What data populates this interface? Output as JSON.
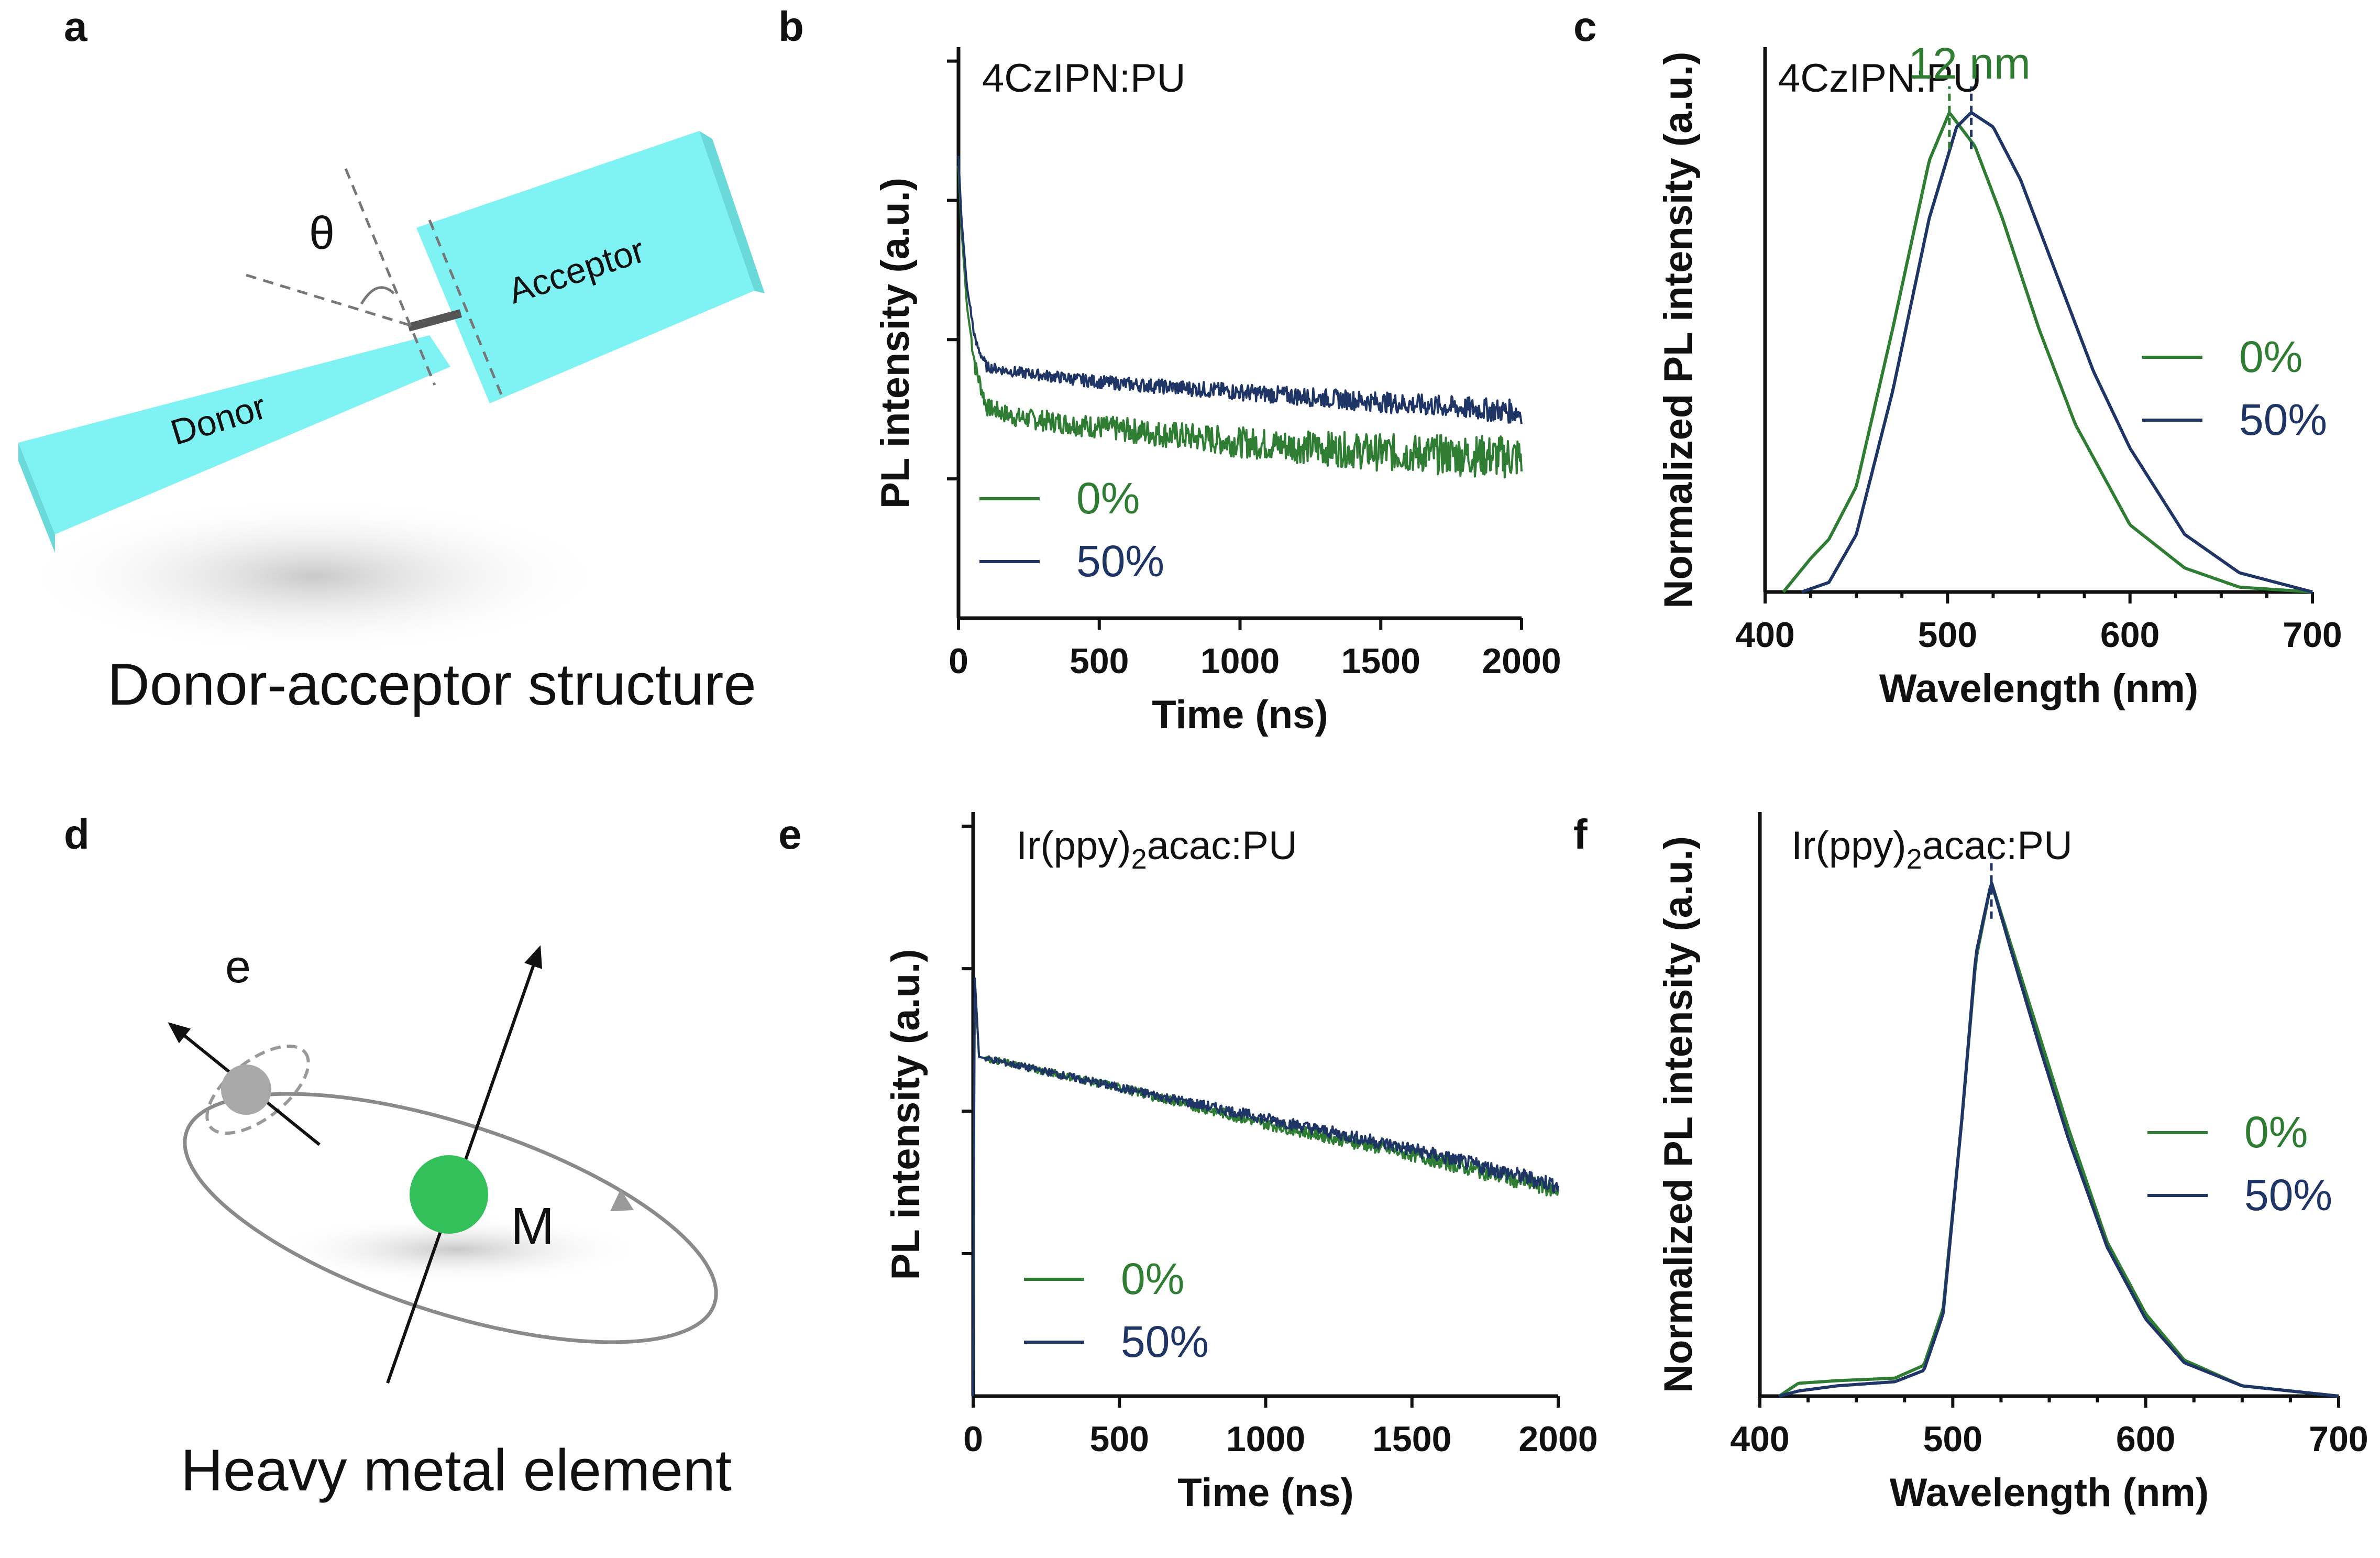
{
  "colors": {
    "green": "#2e7d32",
    "navy": "#1f3566",
    "cyan": "#7df7f7",
    "axis": "#111111"
  },
  "panel_labels": {
    "a": "a",
    "b": "b",
    "c": "c",
    "d": "d",
    "e": "e",
    "f": "f"
  },
  "panel_a": {
    "caption": "Donor-acceptor structure",
    "donor": "Donor",
    "acceptor": "Acceptor",
    "angle": "θ"
  },
  "panel_d": {
    "caption": "Heavy metal element",
    "electron": "e",
    "metal": "M"
  },
  "chart_data": [
    {
      "panel": "b",
      "type": "line",
      "title": "4CzIPN:PU",
      "xlabel": "Time (ns)",
      "ylabel": "PL intensity (a.u.)",
      "xlim": [
        0,
        2000
      ],
      "xticks": [
        "0",
        "500",
        "1000",
        "1500",
        "2000"
      ],
      "y_log_ticks": 4,
      "series": [
        {
          "name": "0%",
          "color": "#2e7d32",
          "x": [
            0,
            10,
            30,
            60,
            100,
            200,
            500,
            1000,
            1500,
            2000
          ],
          "y": [
            0.9,
            0.78,
            0.62,
            0.5,
            0.42,
            0.4,
            0.38,
            0.35,
            0.33,
            0.32
          ]
        },
        {
          "name": "50%",
          "color": "#1f3566",
          "x": [
            0,
            10,
            30,
            60,
            100,
            200,
            500,
            1000,
            1500,
            2000
          ],
          "y": [
            0.92,
            0.8,
            0.66,
            0.55,
            0.5,
            0.49,
            0.47,
            0.45,
            0.43,
            0.41
          ]
        }
      ],
      "legend": [
        "0%",
        "50%"
      ]
    },
    {
      "panel": "c",
      "type": "line",
      "title": "4CzIPN:PU",
      "xlabel": "Wavelength (nm)",
      "ylabel": "Normalized PL intensity (a.u.)",
      "xlim": [
        400,
        700
      ],
      "xticks": [
        "400",
        "500",
        "600",
        "700"
      ],
      "annotation": "12 nm",
      "peaks": [
        501,
        513
      ],
      "series": [
        {
          "name": "0%",
          "color": "#2e7d32",
          "x": [
            410,
            425,
            435,
            450,
            470,
            490,
            501,
            515,
            530,
            550,
            570,
            600,
            630,
            660,
            700
          ],
          "y": [
            0.0,
            0.07,
            0.11,
            0.22,
            0.55,
            0.9,
            1.0,
            0.93,
            0.78,
            0.55,
            0.35,
            0.14,
            0.05,
            0.01,
            0.0
          ]
        },
        {
          "name": "50%",
          "color": "#1f3566",
          "x": [
            420,
            435,
            450,
            470,
            490,
            505,
            513,
            525,
            540,
            560,
            580,
            600,
            630,
            660,
            700
          ],
          "y": [
            0.0,
            0.02,
            0.12,
            0.42,
            0.78,
            0.97,
            1.0,
            0.97,
            0.86,
            0.66,
            0.46,
            0.3,
            0.12,
            0.04,
            0.0
          ]
        }
      ],
      "legend": [
        "0%",
        "50%"
      ]
    },
    {
      "panel": "e",
      "type": "line",
      "title": "Ir(ppy)2acac:PU",
      "title_main": "Ir(ppy)",
      "title_sub": "2",
      "title_rest": "acac:PU",
      "xlabel": "Time (ns)",
      "ylabel": "PL intensity (a.u.)",
      "xlim": [
        0,
        2000
      ],
      "xticks": [
        "0",
        "500",
        "1000",
        "1500",
        "2000"
      ],
      "y_log_ticks": 4,
      "series": [
        {
          "name": "0%",
          "color": "#2e7d32",
          "x": [
            0,
            5,
            20,
            100,
            500,
            1000,
            1500,
            2000
          ],
          "y": [
            0.0,
            0.82,
            0.66,
            0.65,
            0.6,
            0.53,
            0.47,
            0.4
          ]
        },
        {
          "name": "50%",
          "color": "#1f3566",
          "x": [
            0,
            5,
            20,
            100,
            500,
            1000,
            1500,
            2000
          ],
          "y": [
            0.0,
            0.82,
            0.66,
            0.65,
            0.6,
            0.54,
            0.48,
            0.41
          ]
        }
      ],
      "legend": [
        "0%",
        "50%"
      ]
    },
    {
      "panel": "f",
      "type": "line",
      "title": "Ir(ppy)2acac:PU",
      "title_main": "Ir(ppy)",
      "title_sub": "2",
      "title_rest": "acac:PU",
      "xlabel": "Wavelength (nm)",
      "ylabel": "Normalized PL intensity (a.u.)",
      "xlim": [
        400,
        700
      ],
      "xticks": [
        "400",
        "500",
        "600",
        "700"
      ],
      "peaks": [
        520
      ],
      "series": [
        {
          "name": "0%",
          "color": "#2e7d32",
          "x": [
            410,
            420,
            440,
            470,
            485,
            495,
            505,
            512,
            520,
            530,
            545,
            560,
            580,
            600,
            620,
            650,
            700
          ],
          "y": [
            0.0,
            0.025,
            0.03,
            0.035,
            0.06,
            0.17,
            0.55,
            0.85,
            1.0,
            0.88,
            0.7,
            0.52,
            0.3,
            0.16,
            0.07,
            0.02,
            0.0
          ]
        },
        {
          "name": "50%",
          "color": "#1f3566",
          "x": [
            410,
            420,
            440,
            470,
            485,
            495,
            505,
            512,
            520,
            530,
            545,
            560,
            580,
            600,
            620,
            650,
            700
          ],
          "y": [
            0.0,
            0.01,
            0.02,
            0.028,
            0.05,
            0.16,
            0.55,
            0.86,
            1.0,
            0.87,
            0.68,
            0.5,
            0.29,
            0.15,
            0.065,
            0.02,
            0.0
          ]
        }
      ],
      "legend": [
        "0%",
        "50%"
      ]
    }
  ]
}
